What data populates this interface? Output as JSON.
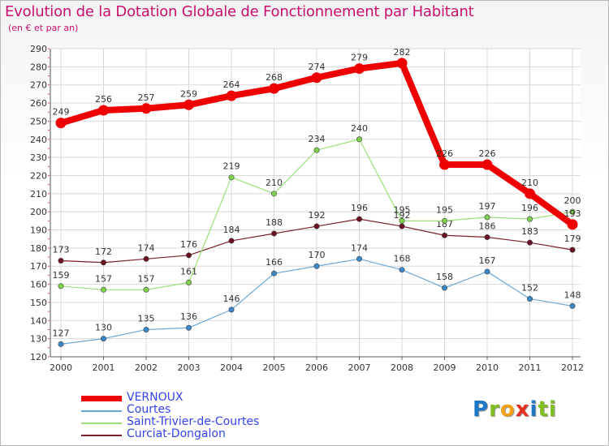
{
  "title": "Evolution de la Dotation Globale de Fonctionnement par Habitant",
  "subtitle": "(en € et par an)",
  "logo": {
    "text": "Proxiti",
    "letters": [
      "P",
      "r",
      "o",
      "x",
      "i",
      "ti"
    ]
  },
  "chart_data": {
    "type": "line",
    "x": [
      "2000",
      "2001",
      "2002",
      "2003",
      "2004",
      "2005",
      "2006",
      "2007",
      "2008",
      "2009",
      "2010",
      "2011",
      "2012"
    ],
    "ylim": [
      120,
      290
    ],
    "yticks": [
      120,
      130,
      140,
      150,
      160,
      170,
      180,
      190,
      200,
      210,
      220,
      230,
      240,
      250,
      260,
      270,
      280,
      290
    ],
    "grid": true,
    "legend_position": "bottom-left",
    "series": [
      {
        "name": "Curciat-Dongalon",
        "color": "#7a1f2b",
        "marker": "#6a1020",
        "width": 1.2,
        "values": [
          173,
          172,
          174,
          176,
          184,
          188,
          192,
          196,
          192,
          187,
          186,
          183,
          179
        ],
        "labels": [
          "173",
          "172",
          "174",
          "176",
          "184",
          "188",
          "192",
          "196",
          "192",
          "187",
          "186",
          "183",
          "179"
        ]
      },
      {
        "name": "Saint-Trivier-de-Courtes",
        "color": "#9be07a",
        "marker": "#7ed04a",
        "width": 1.2,
        "values": [
          159,
          157,
          157,
          161,
          219,
          210,
          234,
          240,
          195,
          195,
          197,
          196,
          200
        ],
        "labels": [
          "159",
          "157",
          "157",
          "161",
          "219",
          "210",
          "234",
          "240",
          "195",
          "195",
          "197",
          "196",
          "200"
        ]
      },
      {
        "name": "Courtes",
        "color": "#6aa8d8",
        "marker": "#3a88c8",
        "width": 1.2,
        "values": [
          127,
          130,
          135,
          136,
          146,
          166,
          170,
          174,
          168,
          158,
          167,
          152,
          148
        ],
        "labels": [
          "127",
          "130",
          "135",
          "136",
          "146",
          "166",
          "170",
          "174",
          "168",
          "158",
          "167",
          "152",
          "148"
        ]
      },
      {
        "name": "VERNOUX",
        "color": "#ee0000",
        "marker": "#ee0000",
        "width": 8,
        "values": [
          249,
          256,
          257,
          259,
          264,
          268,
          274,
          279,
          282,
          226,
          226,
          210,
          193
        ],
        "labels": [
          "249",
          "256",
          "257",
          "259",
          "264",
          "268",
          "274",
          "279",
          "282",
          "226",
          "226",
          "210",
          "193"
        ]
      }
    ],
    "legend_order": [
      "VERNOUX",
      "Courtes",
      "Saint-Trivier-de-Courtes",
      "Curciat-Dongalon"
    ]
  }
}
